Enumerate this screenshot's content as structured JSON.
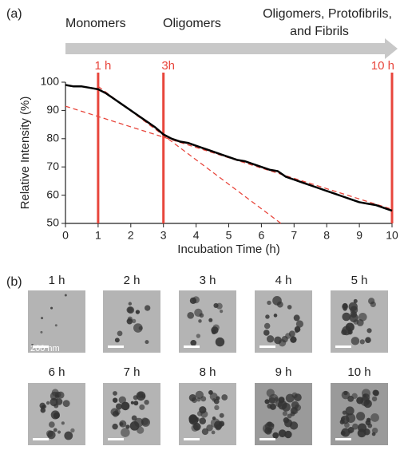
{
  "panel_labels": [
    "(a)",
    "(b)"
  ],
  "stages": [
    [
      "Monomers"
    ],
    [
      "Oligomers"
    ],
    [
      "Oligomers, Protofibrils,",
      "and Fibrils"
    ]
  ],
  "chart_data": {
    "type": "line",
    "x_label": "Incubation Time (h)",
    "y_label": "Relative Intensity (%)",
    "x": [
      0,
      0.25,
      0.5,
      0.75,
      1,
      1.25,
      1.5,
      1.75,
      2,
      2.25,
      2.5,
      2.75,
      3,
      3.25,
      3.5,
      3.75,
      4,
      4.25,
      4.5,
      4.75,
      5,
      5.25,
      5.5,
      5.75,
      6,
      6.25,
      6.5,
      6.75,
      7,
      7.25,
      7.5,
      7.75,
      8,
      8.25,
      8.5,
      8.75,
      9,
      9.25,
      9.5,
      9.75,
      10
    ],
    "series": [
      {
        "color": "#000000",
        "values": [
          99,
          98.5,
          98.5,
          98,
          97.5,
          96,
          94,
          92,
          90,
          88,
          86,
          84,
          81.5,
          80,
          79,
          78.5,
          77.5,
          76.5,
          75.5,
          74.5,
          73.5,
          72.5,
          72,
          71,
          70,
          69,
          68.5,
          66.5,
          65.5,
          64.5,
          63.5,
          62.5,
          61.5,
          60.5,
          59.5,
          58.5,
          57.5,
          57,
          56.5,
          55.5,
          54.5
        ]
      }
    ],
    "fit_lines": [
      {
        "color": "#e8463c",
        "x": [
          1,
          6.6
        ],
        "values": [
          98.5,
          50
        ]
      },
      {
        "color": "#e8463c",
        "x": [
          0,
          10
        ],
        "values": [
          91.5,
          55
        ]
      }
    ],
    "markers": {
      "color": "#e8463c",
      "x": [
        1,
        3,
        10
      ],
      "labels": [
        "1 h",
        "3h",
        "10 h"
      ]
    },
    "xlim": [
      0,
      10
    ],
    "xticks": [
      0,
      1,
      2,
      3,
      4,
      5,
      6,
      7,
      8,
      9,
      10
    ],
    "ylim": [
      50,
      100
    ],
    "yticks": [
      50,
      60,
      70,
      80,
      90,
      100
    ]
  },
  "images": {
    "labels": [
      "1 h",
      "2 h",
      "3 h",
      "4 h",
      "5 h",
      "6 h",
      "7 h",
      "8 h",
      "9 h",
      "10 h"
    ],
    "scale_bar": "200 nm"
  }
}
